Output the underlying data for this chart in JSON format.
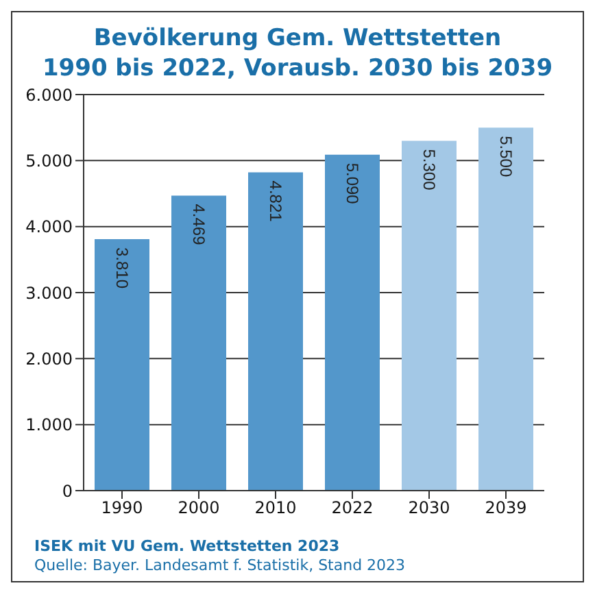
{
  "chart_data": {
    "type": "bar",
    "title": "Bevölkerung Gem. Wettstetten\n1990 bis 2022, Vorausb. 2030 bis 2039",
    "categories": [
      "1990",
      "2000",
      "2010",
      "2022",
      "2030",
      "2039"
    ],
    "values": [
      3810,
      4469,
      4821,
      5090,
      5300,
      5500
    ],
    "colors": [
      "#5397cb",
      "#5397cb",
      "#5397cb",
      "#5397cb",
      "#a3c8e6",
      "#a3c8e6"
    ],
    "value_labels": [
      "3.810",
      "4.469",
      "4.821",
      "5.090",
      "5.300",
      "5.500"
    ],
    "ylim": [
      0,
      6000
    ],
    "yticks": [
      {
        "value": 0,
        "label": "0"
      },
      {
        "value": 1000,
        "label": "1.000"
      },
      {
        "value": 2000,
        "label": "2.000"
      },
      {
        "value": 3000,
        "label": "3.000"
      },
      {
        "value": 4000,
        "label": "4.000"
      },
      {
        "value": 5000,
        "label": "5.000"
      },
      {
        "value": 6000,
        "label": "6.000"
      }
    ],
    "grid": "y",
    "annotations": [
      "ISEK mit VU Gem. Wettstetten 2023",
      "Quelle: Bayer. Landesamt f. Statistik, Stand 2023"
    ]
  }
}
